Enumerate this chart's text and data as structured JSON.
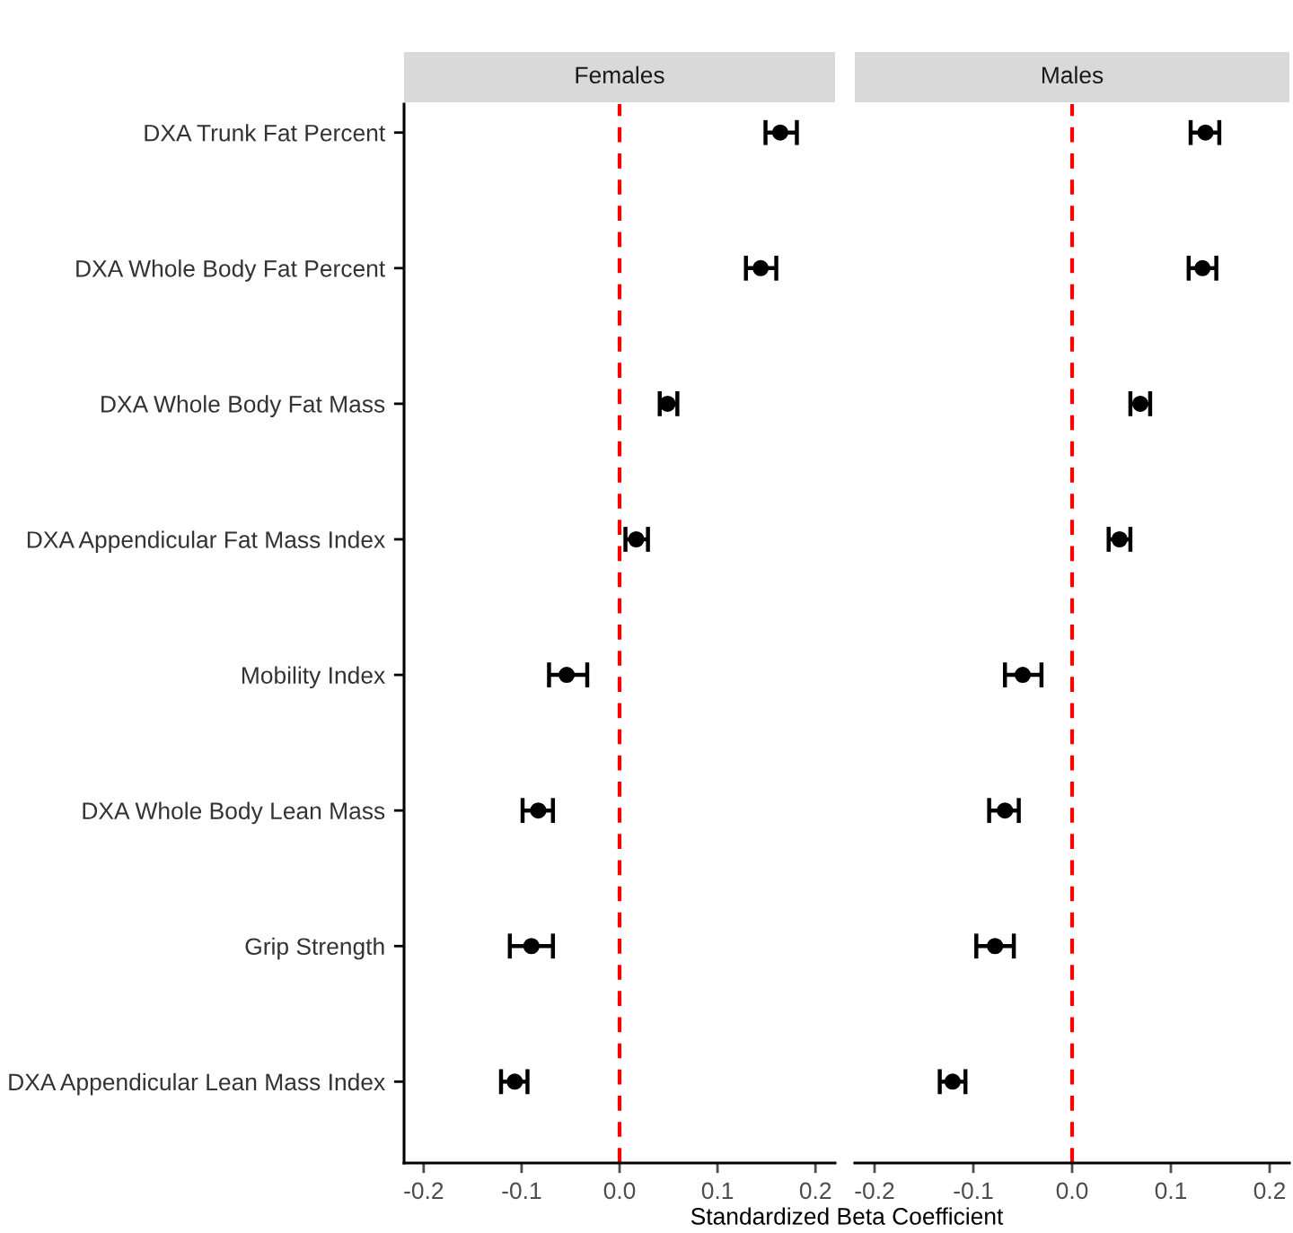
{
  "chart_data": [
    {
      "type": "scatter",
      "orientation": "horizontal",
      "title": "Females",
      "xlabel": "Standardized Beta Coefficient",
      "categories": [
        "DXA Trunk Fat Percent",
        "DXA Whole Body Fat Percent",
        "DXA Whole Body Fat Mass",
        "DXA Appendicular Fat Mass Index",
        "Mobility Index",
        "DXA Whole Body Lean Mass",
        "Grip Strength",
        "DXA Appendicular Lean Mass Index"
      ],
      "series": [
        {
          "color": "#000000",
          "values": [
            0.164,
            0.144,
            0.049,
            0.017,
            -0.054,
            -0.083,
            -0.09,
            -0.107
          ],
          "errors": [
            [
              0.149,
              0.181
            ],
            [
              0.129,
              0.16
            ],
            [
              0.041,
              0.059
            ],
            [
              0.006,
              0.029
            ],
            [
              -0.072,
              -0.033
            ],
            [
              -0.099,
              -0.068
            ],
            [
              -0.112,
              -0.068
            ],
            [
              -0.121,
              -0.094
            ]
          ]
        }
      ],
      "marker": "circle",
      "xlim": [
        -0.22,
        0.22
      ],
      "xticks": [
        {
          "value": -0.2,
          "label": "-0.2"
        },
        {
          "value": -0.1,
          "label": "-0.1"
        },
        {
          "value": 0,
          "label": "0.0"
        },
        {
          "value": 0.1,
          "label": "0.1"
        },
        {
          "value": 0.2,
          "label": "0.2"
        }
      ],
      "ref_lines": [
        {
          "axis": "x",
          "value": 0,
          "color": "#ff0000",
          "line_style": "dashed"
        }
      ],
      "grid": false
    },
    {
      "type": "scatter",
      "orientation": "horizontal",
      "title": "Males",
      "categories": [
        null,
        null,
        null,
        null,
        null,
        null,
        null,
        null
      ],
      "series": [
        {
          "color": "#000000",
          "values": [
            0.135,
            0.132,
            0.069,
            0.048,
            -0.05,
            -0.068,
            -0.078,
            -0.121
          ],
          "errors": [
            [
              0.12,
              0.149
            ],
            [
              0.118,
              0.146
            ],
            [
              0.059,
              0.079
            ],
            [
              0.037,
              0.059
            ],
            [
              -0.068,
              -0.031
            ],
            [
              -0.084,
              -0.054
            ],
            [
              -0.097,
              -0.059
            ],
            [
              -0.134,
              -0.108
            ]
          ]
        }
      ],
      "marker": "circle",
      "xlim": [
        -0.22,
        0.22
      ],
      "xticks": [
        {
          "value": -0.2,
          "label": "-0.2"
        },
        {
          "value": -0.1,
          "label": "-0.1"
        },
        {
          "value": 0,
          "label": "0.0"
        },
        {
          "value": 0.1,
          "label": "0.1"
        },
        {
          "value": 0.2,
          "label": "0.2"
        }
      ],
      "ref_lines": [
        {
          "axis": "x",
          "value": 0,
          "color": "#ff0000",
          "line_style": "dashed"
        }
      ],
      "grid": false,
      "tick_labels": "x"
    }
  ]
}
